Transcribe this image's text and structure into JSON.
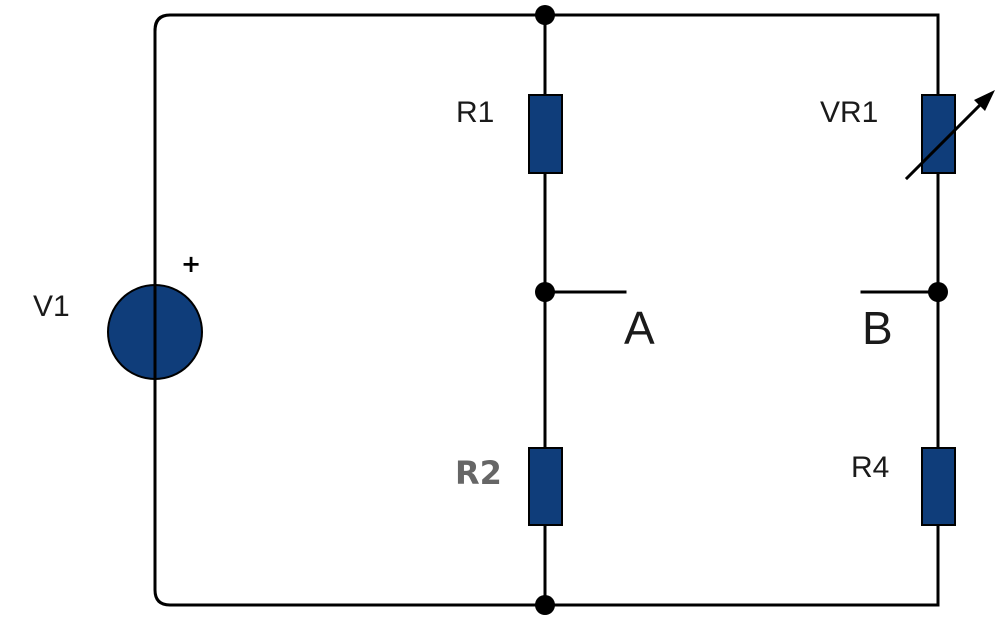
{
  "labels": {
    "v1": "V1",
    "v1_polarity": "+",
    "r1": "R1",
    "r2": "R2",
    "vr1": "VR1",
    "r4": "R4",
    "node_a": "A",
    "node_b": "B"
  },
  "colors": {
    "component_fill": "#0f3d7a",
    "wire": "#000000",
    "r2_label": "#666666"
  }
}
